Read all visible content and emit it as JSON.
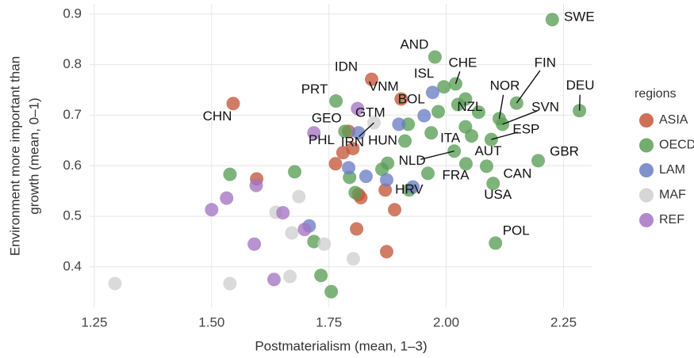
{
  "chart_data": {
    "type": "scatter",
    "xlabel": "Postmaterialism (mean, 1–3)",
    "ylabel": [
      "Environment more important than",
      "growth (mean, 0–1)"
    ],
    "xlim": [
      1.24,
      2.31
    ],
    "ylim": [
      0.32,
      0.92
    ],
    "xticks": [
      1.25,
      {
        "value": 1.5,
        "label": "1.50"
      },
      1.75,
      {
        "value": 2,
        "label": "2.00"
      },
      2.25
    ],
    "yticks": [
      0.4,
      0.5,
      0.6,
      0.7,
      0.8,
      0.9
    ],
    "grid": true,
    "legend_title": "regions",
    "legend": "right",
    "series": [
      {
        "name": "ASIA",
        "color": "#c4573a",
        "x": [
          1.546,
          1.841,
          1.904,
          1.801,
          1.78,
          1.764,
          1.792,
          1.596,
          1.813,
          1.818,
          1.87,
          1.89,
          1.809,
          1.873
        ],
        "values": [
          0.723,
          0.771,
          0.732,
          0.634,
          0.626,
          0.604,
          0.668,
          0.574,
          0.543,
          0.537,
          0.552,
          0.513,
          0.475,
          0.43
        ],
        "labels": [
          "CHN",
          "IDN",
          "VNM",
          null,
          "PHL",
          null,
          null,
          null,
          null,
          null,
          null,
          null,
          null,
          null
        ]
      },
      {
        "name": "OECD",
        "color": "#5a9e56",
        "x": [
          2.226,
          1.976,
          2.02,
          1.995,
          2.041,
          2.15,
          2.113,
          2.12,
          2.284,
          2.025,
          2.069,
          2.096,
          2.041,
          2.054,
          1.983,
          1.919,
          1.968,
          1.912,
          2.017,
          2.042,
          1.961,
          2.086,
          2.1,
          2.196,
          2.105,
          1.765,
          1.784,
          1.875,
          1.863,
          1.794,
          1.921,
          1.806,
          1.539,
          1.677,
          1.718,
          1.733,
          1.755
        ],
        "values": [
          0.889,
          0.815,
          0.762,
          0.756,
          0.732,
          0.724,
          0.693,
          0.682,
          0.709,
          0.721,
          0.706,
          0.652,
          0.677,
          0.659,
          0.707,
          0.682,
          0.665,
          0.649,
          0.629,
          0.604,
          0.585,
          0.599,
          0.565,
          0.61,
          0.447,
          0.728,
          0.668,
          0.605,
          0.593,
          0.577,
          0.552,
          0.547,
          0.583,
          0.588,
          0.45,
          0.383,
          0.351
        ],
        "labels": [
          "SWE",
          "AND",
          "CHE",
          "ISL",
          null,
          "FIN",
          "NOR",
          "SVN",
          "DEU",
          null,
          "NZL",
          "ESP",
          null,
          null,
          null,
          null,
          "ITA",
          "HUN",
          "NLD",
          "AUT",
          "FRA",
          "CAN",
          "USA",
          "GBR",
          "POL",
          "PRT",
          "GEO",
          null,
          null,
          null,
          "HRV",
          null,
          null,
          null,
          null,
          null,
          null
        ]
      },
      {
        "name": "LAM",
        "color": "#6a7ec4",
        "x": [
          1.971,
          1.953,
          1.899,
          1.813,
          1.792,
          1.829,
          1.873,
          1.929,
          1.708
        ],
        "values": [
          0.745,
          0.699,
          0.682,
          0.665,
          0.596,
          0.579,
          0.572,
          0.558,
          0.481
        ],
        "labels": [
          null,
          "BOL",
          "GTM",
          null,
          null,
          null,
          null,
          null,
          null
        ]
      },
      {
        "name": "MAF",
        "color": "#cfcfcf",
        "x": [
          1.846,
          1.294,
          1.539,
          1.637,
          1.686,
          1.671,
          1.667,
          1.74,
          1.802
        ],
        "values": [
          0.685,
          0.367,
          0.367,
          0.508,
          0.539,
          0.467,
          0.381,
          0.445,
          0.416
        ],
        "labels": [
          "IRN",
          null,
          null,
          null,
          null,
          null,
          null,
          null,
          null
        ]
      },
      {
        "name": "REF",
        "color": "#a475c2",
        "x": [
          1.811,
          1.718,
          1.652,
          1.595,
          1.532,
          1.5,
          1.591,
          1.698,
          1.633
        ],
        "values": [
          0.713,
          0.665,
          0.507,
          0.561,
          0.536,
          0.513,
          0.445,
          0.474,
          0.375
        ],
        "labels": [
          null,
          null,
          null,
          null,
          null,
          null,
          null,
          null,
          null
        ]
      }
    ]
  }
}
